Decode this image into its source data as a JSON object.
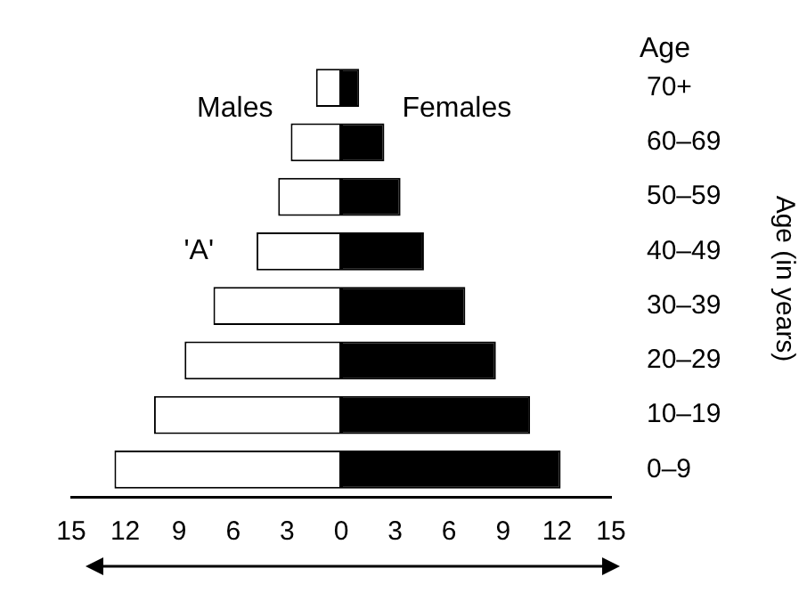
{
  "chart_data": {
    "type": "bar",
    "orientation": "horizontal",
    "stacked": true,
    "categories": [
      "70+",
      "60–69",
      "50–59",
      "40–49",
      "30–39",
      "20–29",
      "10–19",
      "0–9"
    ],
    "series": [
      {
        "name": "Males",
        "color": "#ffffff",
        "values": [
          -1.4,
          -2.8,
          -3.5,
          -4.7,
          -7.1,
          -8.7,
          -10.4,
          -12.6
        ]
      },
      {
        "name": "Females",
        "color": "#000000",
        "values": [
          1.0,
          2.4,
          3.3,
          4.6,
          6.9,
          8.6,
          10.5,
          12.2
        ]
      }
    ],
    "xlim": [
      -15,
      15
    ],
    "xticks": [
      {
        "value": -15,
        "label": "15"
      },
      {
        "value": -12,
        "label": "12"
      },
      {
        "value": -9,
        "label": "9"
      },
      {
        "value": -6,
        "label": "6"
      },
      {
        "value": -3,
        "label": "3"
      },
      0,
      3,
      6,
      9,
      12,
      15
    ],
    "ylabel": "Age (in years)",
    "annotations": [
      "Age",
      {
        "text": "'A'",
        "x": -4.7,
        "y": "40–49"
      }
    ],
    "grid": false,
    "legend": false
  }
}
